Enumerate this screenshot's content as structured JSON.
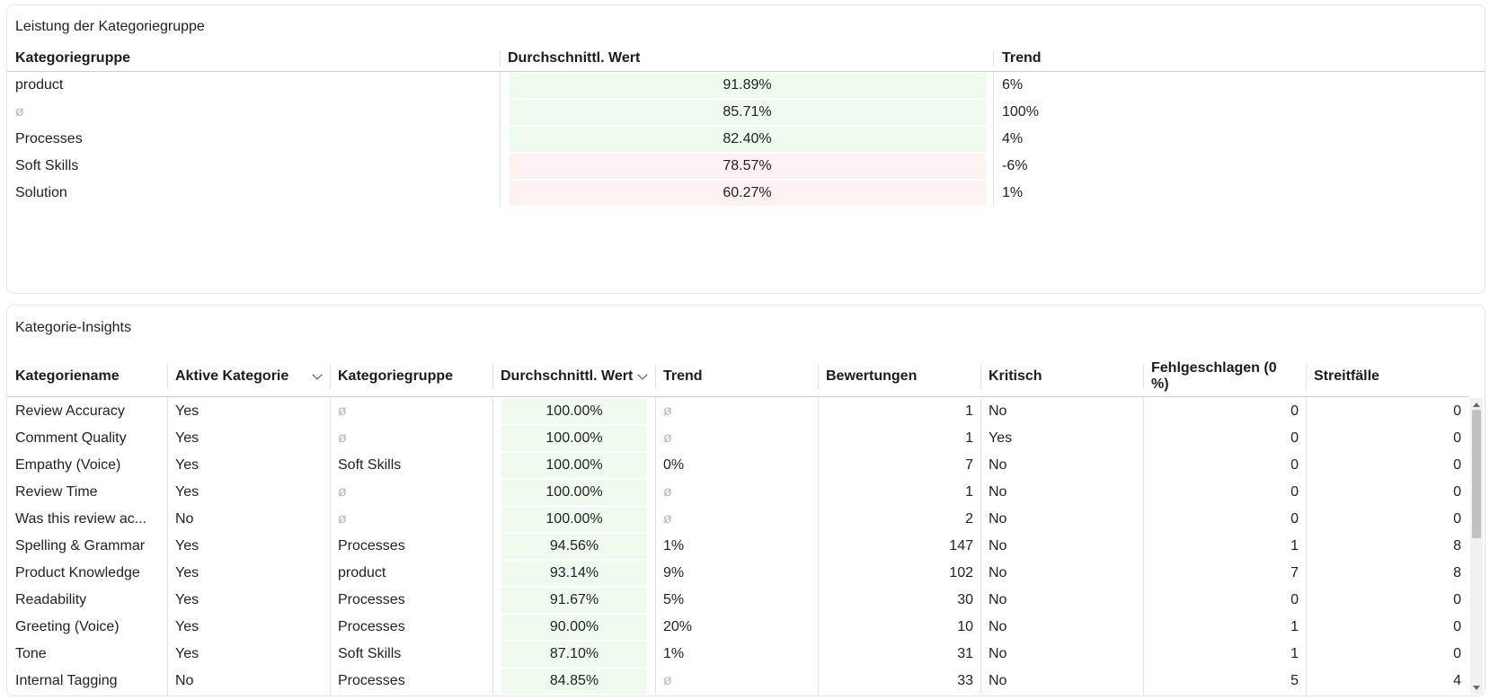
{
  "group_panel": {
    "title": "Leistung der Kategoriegruppe",
    "headers": {
      "group": "Kategoriegruppe",
      "avg": "Durchschnittl. Wert",
      "trend": "Trend"
    },
    "rows": [
      {
        "group": "product",
        "avg": "91.89%",
        "trend": "6%",
        "fill": "#f0fbf0",
        "null_group": false
      },
      {
        "group": "ø",
        "avg": "85.71%",
        "trend": "100%",
        "fill": "#f0fbf0",
        "null_group": true
      },
      {
        "group": "Processes",
        "avg": "82.40%",
        "trend": "4%",
        "fill": "#f0fbf0",
        "null_group": false
      },
      {
        "group": "Soft Skills",
        "avg": "78.57%",
        "trend": "-6%",
        "fill": "#fdf3f1",
        "null_group": false
      },
      {
        "group": "Solution",
        "avg": "60.27%",
        "trend": "1%",
        "fill": "#fdf3f1",
        "null_group": false
      }
    ]
  },
  "insights_panel": {
    "title": "Kategorie-Insights",
    "headers": {
      "name": "Kategoriename",
      "active": "Aktive Kategorie",
      "group": "Kategoriegruppe",
      "avg": "Durchschnittl. Wert",
      "trend": "Trend",
      "reviews": "Bewertungen",
      "critical": "Kritisch",
      "failed": "Fehlgeschlagen (0 %)",
      "disputes": "Streitfälle"
    },
    "rows": [
      {
        "name": "Review Accuracy",
        "active": "Yes",
        "group": "ø",
        "avg": "100.00%",
        "trend": "ø",
        "reviews": "1",
        "critical": "No",
        "failed": "0",
        "disputes": "0"
      },
      {
        "name": "Comment Quality",
        "active": "Yes",
        "group": "ø",
        "avg": "100.00%",
        "trend": "ø",
        "reviews": "1",
        "critical": "Yes",
        "failed": "0",
        "disputes": "0"
      },
      {
        "name": "Empathy (Voice)",
        "active": "Yes",
        "group": "Soft Skills",
        "avg": "100.00%",
        "trend": "0%",
        "reviews": "7",
        "critical": "No",
        "failed": "0",
        "disputes": "0"
      },
      {
        "name": "Review Time",
        "active": "Yes",
        "group": "ø",
        "avg": "100.00%",
        "trend": "ø",
        "reviews": "1",
        "critical": "No",
        "failed": "0",
        "disputes": "0"
      },
      {
        "name": "Was this review ac...",
        "active": "No",
        "group": "ø",
        "avg": "100.00%",
        "trend": "ø",
        "reviews": "2",
        "critical": "No",
        "failed": "0",
        "disputes": "0"
      },
      {
        "name": "Spelling & Grammar",
        "active": "Yes",
        "group": "Processes",
        "avg": "94.56%",
        "trend": "1%",
        "reviews": "147",
        "critical": "No",
        "failed": "1",
        "disputes": "8"
      },
      {
        "name": "Product Knowledge",
        "active": "Yes",
        "group": "product",
        "avg": "93.14%",
        "trend": "9%",
        "reviews": "102",
        "critical": "No",
        "failed": "7",
        "disputes": "8"
      },
      {
        "name": "Readability",
        "active": "Yes",
        "group": "Processes",
        "avg": "91.67%",
        "trend": "5%",
        "reviews": "30",
        "critical": "No",
        "failed": "0",
        "disputes": "0"
      },
      {
        "name": "Greeting (Voice)",
        "active": "Yes",
        "group": "Processes",
        "avg": "90.00%",
        "trend": "20%",
        "reviews": "10",
        "critical": "No",
        "failed": "1",
        "disputes": "0"
      },
      {
        "name": "Tone",
        "active": "Yes",
        "group": "Soft Skills",
        "avg": "87.10%",
        "trend": "1%",
        "reviews": "31",
        "critical": "No",
        "failed": "1",
        "disputes": "0"
      },
      {
        "name": "Internal Tagging",
        "active": "No",
        "group": "Processes",
        "avg": "84.85%",
        "trend": "ø",
        "reviews": "33",
        "critical": "No",
        "failed": "5",
        "disputes": "4"
      }
    ],
    "avg_fill": "#f0fbf0"
  },
  "icons": {
    "sort": "chevron-down-icon",
    "scroll_up": "arrow-up-icon",
    "scroll_down": "arrow-down-icon"
  }
}
